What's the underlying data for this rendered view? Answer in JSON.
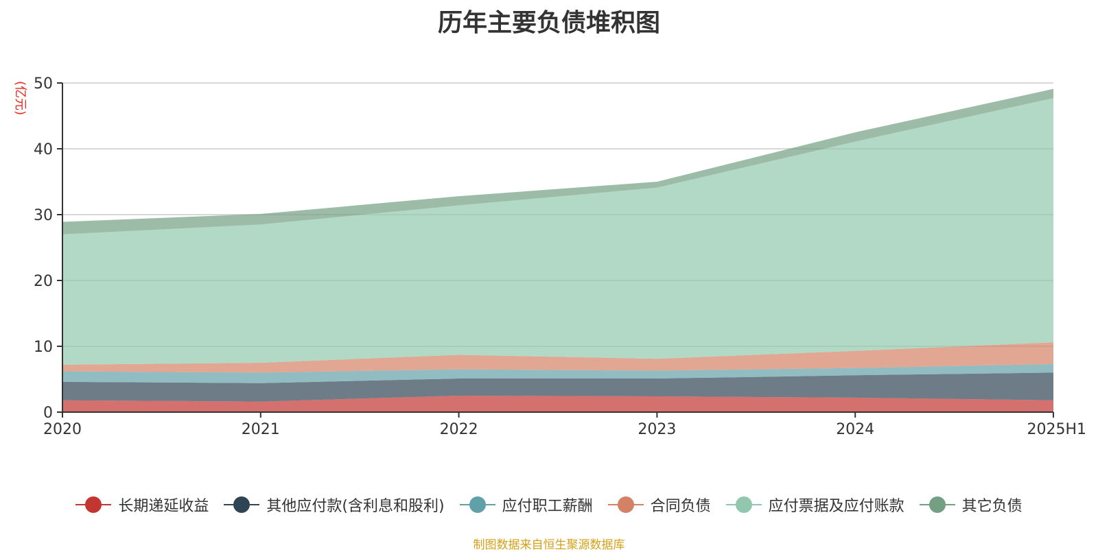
{
  "title": "历年主要负债堆积图",
  "unit_label": "(亿元)",
  "source_note": "制图数据来自恒生聚源数据库",
  "chart_data": {
    "type": "area",
    "stacked": true,
    "categories": [
      "2020",
      "2021",
      "2022",
      "2023",
      "2024",
      "2025H1"
    ],
    "ylim": [
      0,
      50
    ],
    "yticks": [
      0,
      10,
      20,
      30,
      40,
      50
    ],
    "grid": true,
    "legend_position": "bottom",
    "series": [
      {
        "name": "长期递延收益",
        "color": "#c23531",
        "values": [
          1.8,
          1.6,
          2.5,
          2.4,
          2.2,
          1.8
        ]
      },
      {
        "name": "其他应付款(含利息和股利)",
        "color": "#2f4554",
        "values": [
          2.8,
          2.8,
          2.6,
          2.7,
          3.4,
          4.2
        ]
      },
      {
        "name": "应付职工薪酬",
        "color": "#61a0a8",
        "values": [
          1.6,
          1.6,
          1.4,
          1.2,
          1.1,
          1.3
        ]
      },
      {
        "name": "合同负债",
        "color": "#d48265",
        "values": [
          1.0,
          1.5,
          2.2,
          1.8,
          2.6,
          3.3
        ]
      },
      {
        "name": "应付票据及应付账款",
        "color": "#91c7ae",
        "values": [
          19.8,
          21.0,
          22.7,
          26.0,
          31.8,
          37.1
        ]
      },
      {
        "name": "其它负债",
        "color": "#749f83",
        "values": [
          1.9,
          1.6,
          1.4,
          0.9,
          1.4,
          1.4
        ]
      }
    ]
  }
}
